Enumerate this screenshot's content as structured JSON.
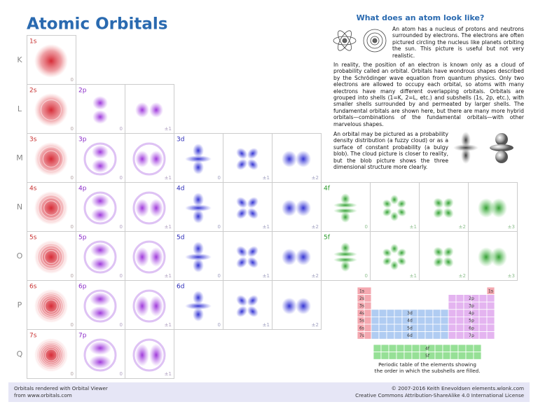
{
  "title": "Atomic Orbitals",
  "heading": "What does an atom look like?",
  "paragraphs": [
    "An atom has a nucleus of protons and neutrons surrounded by electrons. The electrons are often pictured circling the nucleus like planets orbiting the sun. This picture is useful but not very realistic.",
    "In reality, the position of an electron is known only as a cloud of probability called an orbital. Orbitals have wondrous shapes described by the Schrödinger wave equation from quantum physics. Only two electrons are allowed to occupy each orbital, so atoms with many electrons have many different overlapping orbitals. Orbitals are grouped into shells (1=K, 2=L, etc.) and subshells (1s, 2p, etc.), with smaller shells surrounded by and permeated by larger shells. The fundamental orbitals are shown here, but there are many more hybrid orbitals—combinations of the fundamental orbitals—with other marvelous shapes.",
    "An orbital may be pictured as a probability density distribution (a fuzzy cloud) or as a surface of constant probability (a bulgy blob). The cloud picture is closer to reality, but the blob picture shows the three dimensional structure more clearly."
  ],
  "rows": [
    {
      "shell": "K",
      "groups": [
        {
          "label": "1s",
          "m": [
            "0"
          ]
        }
      ]
    },
    {
      "shell": "L",
      "groups": [
        {
          "label": "2s",
          "m": [
            "0"
          ]
        },
        {
          "label": "2p",
          "m": [
            "0",
            "±1"
          ]
        }
      ]
    },
    {
      "shell": "M",
      "groups": [
        {
          "label": "3s",
          "m": [
            "0"
          ]
        },
        {
          "label": "3p",
          "m": [
            "0",
            "±1"
          ]
        },
        {
          "label": "3d",
          "m": [
            "0",
            "±1",
            "±2"
          ]
        }
      ]
    },
    {
      "shell": "N",
      "groups": [
        {
          "label": "4s",
          "m": [
            "0"
          ]
        },
        {
          "label": "4p",
          "m": [
            "0",
            "±1"
          ]
        },
        {
          "label": "4d",
          "m": [
            "0",
            "±1",
            "±2"
          ]
        },
        {
          "label": "4f",
          "m": [
            "0",
            "±1",
            "±2",
            "±3"
          ]
        }
      ]
    },
    {
      "shell": "O",
      "groups": [
        {
          "label": "5s",
          "m": [
            "0"
          ]
        },
        {
          "label": "5p",
          "m": [
            "0",
            "±1"
          ]
        },
        {
          "label": "5d",
          "m": [
            "0",
            "±1",
            "±2"
          ]
        },
        {
          "label": "5f",
          "m": [
            "0",
            "±1",
            "±2",
            "±3"
          ]
        }
      ]
    },
    {
      "shell": "P",
      "groups": [
        {
          "label": "6s",
          "m": [
            "0"
          ]
        },
        {
          "label": "6p",
          "m": [
            "0",
            "±1"
          ]
        },
        {
          "label": "6d",
          "m": [
            "0",
            "±1",
            "±2"
          ]
        }
      ]
    },
    {
      "shell": "Q",
      "groups": [
        {
          "label": "7s",
          "m": [
            "0"
          ]
        },
        {
          "label": "7p",
          "m": [
            "0",
            "±1"
          ]
        }
      ]
    }
  ],
  "periodic": {
    "s": [
      "1s",
      "2s",
      "3s",
      "4s",
      "5s",
      "6s",
      "7s"
    ],
    "helium": "1s",
    "p": [
      "2p",
      "3p",
      "4p",
      "5p",
      "6p",
      "7p"
    ],
    "d": [
      "3d",
      "4d",
      "5d",
      "6d"
    ],
    "f": [
      "4f",
      "5f"
    ],
    "caption": [
      "Periodic table of the elements showing",
      "the order in which the subshells are filled."
    ]
  },
  "footer": {
    "left": [
      "Orbitals rendered with Orbital Viewer",
      "from www.orbitals.com"
    ],
    "right": [
      "© 2007-2016 Keith Enevoldsen   elements.wlonk.com",
      "Creative Commons Attribution-ShareAlike 4.0 International License"
    ]
  }
}
